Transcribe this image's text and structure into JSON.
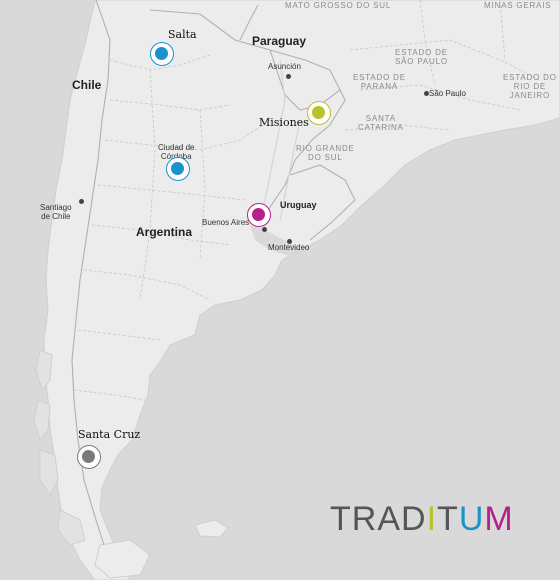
{
  "countries": {
    "chile": "Chile",
    "paraguay": "Paraguay",
    "argentina": "Argentina",
    "uruguay": "Uruguay"
  },
  "brazil_states": {
    "mato_grosso_do_sul": "MATO GROSSO DO SUL",
    "minas_gerais": "MINAS GERAIS",
    "sao_paulo_state": [
      "ESTADO DE",
      "SÃO PAULO"
    ],
    "parana": [
      "ESTADO DE",
      "PARANÁ"
    ],
    "rio_de_janeiro": [
      "ESTADO DO",
      "RIO DE",
      "JANEIRO"
    ],
    "santa_catarina": [
      "SANTA",
      "CATARINA"
    ],
    "rio_grande_do_sul": [
      "RIO GRANDE",
      "DO SUL"
    ]
  },
  "cities": {
    "asuncion": "Asunción",
    "sao_paulo": "São Paulo",
    "santiago": [
      "Santiago",
      "de Chile"
    ],
    "cordoba": [
      "Ciudad de",
      "Córdoba"
    ],
    "buenos_aires": "Buenos Aires",
    "montevideo": "Montevideo"
  },
  "regions": [
    {
      "label": "Salta",
      "color": "#1b92c9"
    },
    {
      "label": "Misiones",
      "color": "#b8c22c"
    },
    {
      "label": "Córdoba",
      "color": "#1b92c9"
    },
    {
      "label": "Buenos Aires",
      "color": "#b5208a"
    },
    {
      "label": "Santa Cruz",
      "color": "#7a7a7a"
    }
  ],
  "logo": {
    "letters": [
      "T",
      "R",
      "A",
      "D",
      "I",
      "T",
      "U",
      "M"
    ],
    "colors": [
      "#555555",
      "#555555",
      "#555555",
      "#555555",
      "#b8c22c",
      "#555555",
      "#1b92c9",
      "#b5208a"
    ]
  }
}
